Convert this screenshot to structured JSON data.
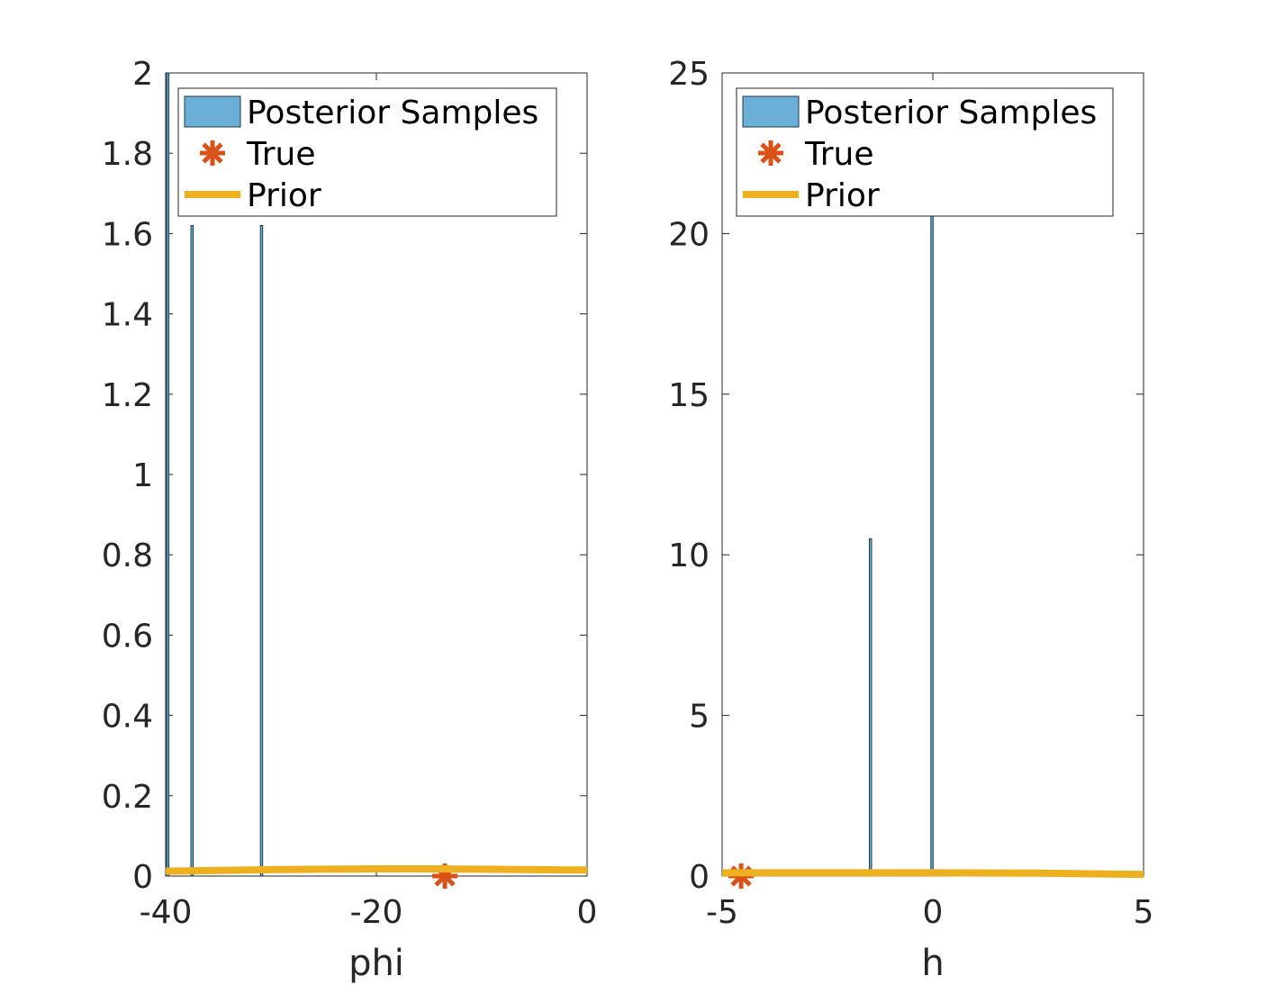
{
  "colors": {
    "posterior": "#6baed6",
    "posterior_edge": "#1f3a4d",
    "true_marker": "#d95319",
    "prior": "#edb120",
    "axis": "#262626"
  },
  "chart_data": [
    {
      "type": "bar",
      "xlabel": "phi",
      "ylabel": "",
      "xlim": [
        -40,
        0
      ],
      "ylim": [
        0,
        2
      ],
      "xticks": [
        -40,
        -20,
        0
      ],
      "xtick_labels": [
        "-40",
        "-20",
        "0"
      ],
      "yticks": [
        0,
        0.2,
        0.4,
        0.6,
        0.8,
        1,
        1.2,
        1.4,
        1.6,
        1.8,
        2
      ],
      "ytick_labels": [
        "0",
        "0.2",
        "0.4",
        "0.6",
        "0.8",
        "1",
        "1.2",
        "1.4",
        "1.6",
        "1.8",
        "2"
      ],
      "legend": {
        "location": "top-right",
        "entries": [
          "Posterior Samples",
          "True",
          "Prior"
        ]
      },
      "series": [
        {
          "name": "Posterior Samples",
          "type": "bar",
          "x": [
            -39.8,
            -37.5,
            -30.9
          ],
          "values": [
            2.0,
            1.62,
            1.62
          ],
          "bar_width": 0.15
        },
        {
          "name": "True",
          "type": "scatter",
          "x": [
            -13.5
          ],
          "values": [
            0.0
          ]
        },
        {
          "name": "Prior",
          "type": "line",
          "x": [
            -40,
            -35,
            -30,
            -25,
            -20,
            -15,
            -10,
            -5,
            0
          ],
          "values": [
            0.012,
            0.014,
            0.016,
            0.017,
            0.018,
            0.018,
            0.017,
            0.016,
            0.015
          ]
        }
      ]
    },
    {
      "type": "bar",
      "xlabel": "h",
      "ylabel": "",
      "xlim": [
        -5,
        5
      ],
      "ylim": [
        0,
        25
      ],
      "xticks": [
        -5,
        0,
        5
      ],
      "xtick_labels": [
        "-5",
        "0",
        "5"
      ],
      "yticks": [
        0,
        5,
        10,
        15,
        20,
        25
      ],
      "ytick_labels": [
        "0",
        "5",
        "10",
        "15",
        "20",
        "25"
      ],
      "legend": {
        "location": "top-right",
        "entries": [
          "Posterior Samples",
          "True",
          "Prior"
        ]
      },
      "series": [
        {
          "name": "Posterior Samples",
          "type": "bar",
          "x": [
            -1.48,
            -0.02
          ],
          "values": [
            10.5,
            20.7
          ],
          "bar_width": 0.02
        },
        {
          "name": "True",
          "type": "scatter",
          "x": [
            -4.55
          ],
          "values": [
            0.0
          ]
        },
        {
          "name": "Prior",
          "type": "line",
          "x": [
            -5,
            -2.5,
            0,
            2.5,
            5
          ],
          "values": [
            0.1,
            0.1,
            0.1,
            0.09,
            0.05
          ]
        }
      ]
    }
  ]
}
